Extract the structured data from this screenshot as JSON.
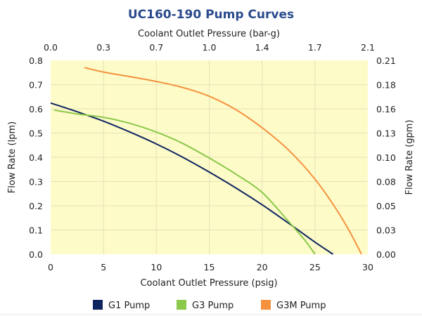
{
  "chart_data": {
    "type": "line",
    "title": "UC160-190 Pump Curves",
    "xlabel": "Coolant Outlet Pressure (psig)",
    "x2label": "Coolant Outlet Pressure (bar-g)",
    "ylabel": "Flow Rate (lpm)",
    "y2label": "Flow Rate (gpm)",
    "xlim": [
      0,
      30
    ],
    "ylim": [
      0,
      0.8
    ],
    "grid": true,
    "plot_background": "#fdfbc8",
    "x_ticks": [
      "0",
      "5",
      "10",
      "15",
      "20",
      "25",
      "30"
    ],
    "x_tick_values": [
      0,
      5,
      10,
      15,
      20,
      25,
      30
    ],
    "x2_ticks": [
      "0.0",
      "0.3",
      "0.7",
      "1.0",
      "1.4",
      "1.7",
      "2.1"
    ],
    "y_ticks": [
      "0.0",
      "0.1",
      "0.2",
      "0.3",
      "0.4",
      "0.5",
      "0.6",
      "0.7",
      "0.8"
    ],
    "y_tick_values": [
      0,
      0.1,
      0.2,
      0.3,
      0.4,
      0.5,
      0.6,
      0.7,
      0.8
    ],
    "y2_ticks": [
      "0.00",
      "0.03",
      "0.05",
      "0.08",
      "0.10",
      "0.13",
      "0.16",
      "0.18",
      "0.21"
    ],
    "legend_position": "bottom",
    "series": [
      {
        "name": "G1 Pump",
        "color": "#0e2560",
        "x": [
          0,
          2.5,
          5,
          7.5,
          10,
          12.5,
          15,
          17.5,
          20,
          22.5,
          25,
          26.7
        ],
        "y": [
          0.624,
          0.588,
          0.549,
          0.504,
          0.455,
          0.4,
          0.339,
          0.274,
          0.204,
          0.128,
          0.05,
          0.0
        ]
      },
      {
        "name": "G3 Pump",
        "color": "#8cc84b",
        "x": [
          0.3,
          2.5,
          5,
          7.5,
          10,
          12.5,
          15,
          17.5,
          20,
          22.5,
          24,
          25
        ],
        "y": [
          0.595,
          0.579,
          0.565,
          0.54,
          0.504,
          0.457,
          0.397,
          0.331,
          0.255,
          0.135,
          0.06,
          0.0
        ]
      },
      {
        "name": "G3M Pump",
        "color": "#f5923e",
        "x": [
          3.2,
          5,
          7.5,
          10,
          12.5,
          15,
          17.5,
          20,
          22.5,
          25,
          26.8,
          28.2,
          29.4
        ],
        "y": [
          0.77,
          0.752,
          0.733,
          0.713,
          0.688,
          0.652,
          0.597,
          0.522,
          0.43,
          0.31,
          0.2,
          0.1,
          0.0
        ]
      }
    ]
  }
}
